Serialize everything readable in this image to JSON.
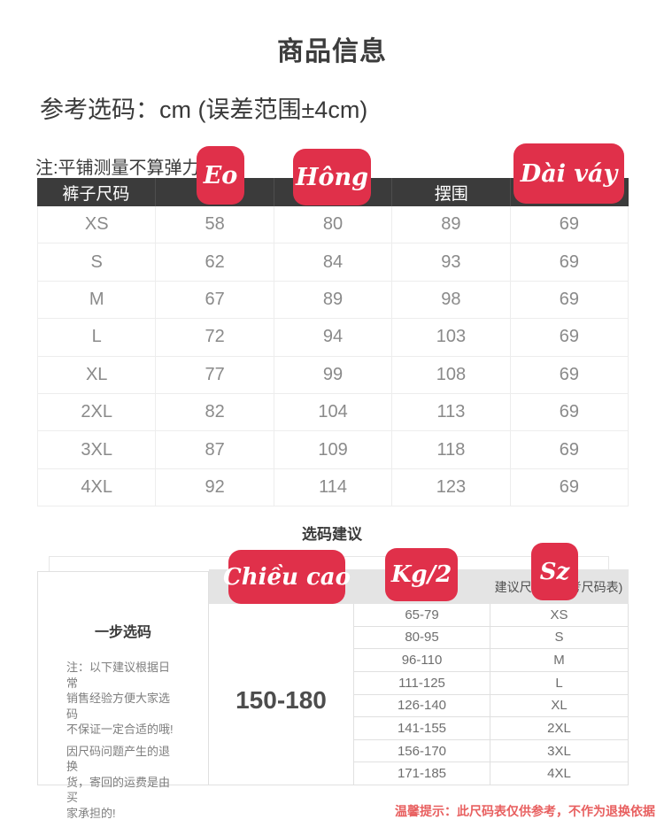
{
  "page": {
    "title": "商品信息",
    "subtitle": "参考选码：cm (误差范围±4cm)",
    "note": "注:平铺测量不算弹力",
    "section2_title": "选码建议",
    "bottom_note": "温馨提示：此尺码表仅供参考，不作为退换依据"
  },
  "colors": {
    "badge_red": "#e0304a",
    "header_dark": "#3b3b3b",
    "gray_band": "#e4e4e4",
    "note_red": "#e86060"
  },
  "size_table": {
    "columns": [
      "裤子尺码",
      "",
      "",
      "摆围",
      ""
    ],
    "badges": [
      "Eo",
      "Hông",
      "Dài váy"
    ],
    "rows": [
      {
        "size": "XS",
        "values": [
          "58",
          "80",
          "89",
          "69"
        ]
      },
      {
        "size": "S",
        "values": [
          "62",
          "84",
          "93",
          "69"
        ]
      },
      {
        "size": "M",
        "values": [
          "67",
          "89",
          "98",
          "69"
        ]
      },
      {
        "size": "L",
        "values": [
          "72",
          "94",
          "103",
          "69"
        ]
      },
      {
        "size": "XL",
        "values": [
          "77",
          "99",
          "108",
          "69"
        ]
      },
      {
        "size": "2XL",
        "values": [
          "82",
          "104",
          "113",
          "69"
        ]
      },
      {
        "size": "3XL",
        "values": [
          "87",
          "109",
          "118",
          "69"
        ]
      },
      {
        "size": "4XL",
        "values": [
          "92",
          "114",
          "123",
          "69"
        ]
      }
    ]
  },
  "suggest_table": {
    "header_right": "建议尺码（参考尺码表)",
    "badges": [
      "Chiều cao",
      "Kg/2",
      "Sz"
    ],
    "left_panel": {
      "title": "一步选码",
      "para1_lines": [
        "注：以下建议根据日常",
        "销售经验方便大家选码",
        "不保证一定合适的哦!"
      ],
      "para2_lines": [
        "因尺码问题产生的退换",
        "货，寄回的运费是由买",
        "家承担的!"
      ]
    },
    "height_range": "150-180",
    "rows": [
      {
        "weight": "65-79",
        "size": "XS"
      },
      {
        "weight": "80-95",
        "size": "S"
      },
      {
        "weight": "96-110",
        "size": "M"
      },
      {
        "weight": "111-125",
        "size": "L"
      },
      {
        "weight": "126-140",
        "size": "XL"
      },
      {
        "weight": "141-155",
        "size": "2XL"
      },
      {
        "weight": "156-170",
        "size": "3XL"
      },
      {
        "weight": "171-185",
        "size": "4XL"
      }
    ]
  }
}
